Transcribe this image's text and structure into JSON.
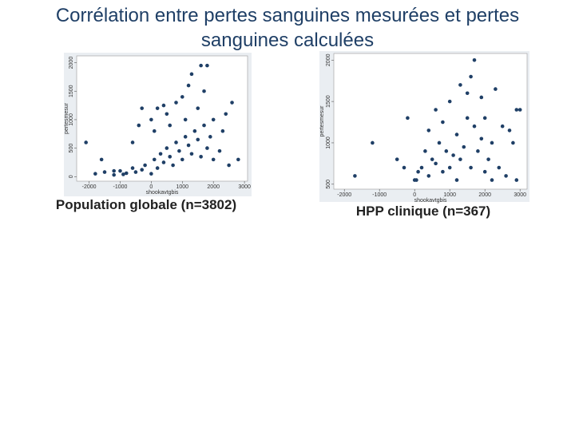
{
  "title": "Corrélation entre pertes sanguines mesurées et pertes sanguines calculées",
  "chart_data": [
    {
      "type": "scatter",
      "title": "Population globale (n=3802)",
      "x_label": "shookavtgbis",
      "y_label": "pertesmesur",
      "color": "#1f3f66",
      "xlim": [
        -2400,
        3100
      ],
      "ylim": [
        -80,
        2120
      ],
      "xticks": [
        -2000,
        -1000,
        0,
        1000,
        2000,
        3000
      ],
      "yticks": [
        0,
        500,
        1000,
        1500,
        2000
      ],
      "x": [
        -1800,
        -1500,
        -1200,
        -1000,
        -800,
        -600,
        -500,
        -300,
        -200,
        0,
        100,
        200,
        300,
        400,
        500,
        600,
        700,
        800,
        900,
        1000,
        1100,
        1200,
        1300,
        1400,
        1500,
        1600,
        1700,
        1800,
        1900,
        2000,
        2200,
        2500,
        2800,
        -1600,
        -2100,
        -600,
        -400,
        0,
        200,
        500,
        800,
        1000,
        1200,
        1300,
        1500,
        1800,
        1700,
        2000,
        2400,
        2600,
        1600,
        -300,
        400,
        100,
        -1200,
        -900,
        600,
        1100,
        2300
      ],
      "y": [
        50,
        80,
        30,
        100,
        60,
        150,
        80,
        120,
        200,
        50,
        300,
        150,
        400,
        250,
        500,
        350,
        200,
        600,
        450,
        300,
        700,
        550,
        400,
        800,
        650,
        350,
        900,
        500,
        700,
        300,
        450,
        200,
        300,
        300,
        600,
        600,
        900,
        1000,
        1200,
        1100,
        1300,
        1400,
        1600,
        1800,
        1200,
        1950,
        1500,
        1000,
        1100,
        1300,
        1950,
        1200,
        1250,
        800,
        100,
        40,
        900,
        1000,
        800
      ]
    },
    {
      "type": "scatter",
      "title": "HPP clinique (n=367)",
      "x_label": "shookavtgbis",
      "y_label": "pertesmesur",
      "color": "#1f3f66",
      "xlim": [
        -2300,
        3200
      ],
      "ylim": [
        440,
        2080
      ],
      "xticks": [
        -2000,
        -1000,
        0,
        1000,
        2000,
        3000
      ],
      "yticks": [
        500,
        1000,
        1500,
        2000
      ],
      "x": [
        -1700,
        -1200,
        -500,
        -300,
        0,
        100,
        200,
        300,
        400,
        500,
        600,
        700,
        800,
        900,
        1000,
        1100,
        1200,
        1300,
        1400,
        1500,
        1600,
        1700,
        1800,
        1900,
        2000,
        2100,
        2200,
        2400,
        2600,
        2800,
        2500,
        2900,
        3000,
        -200,
        600,
        1000,
        1300,
        1600,
        1700,
        2300,
        2000,
        400,
        1500,
        2700,
        1900,
        800,
        50,
        1200,
        2200,
        2900
      ],
      "y": [
        600,
        1000,
        800,
        700,
        550,
        650,
        700,
        900,
        600,
        800,
        750,
        1000,
        650,
        900,
        700,
        850,
        1100,
        800,
        950,
        1300,
        700,
        1200,
        900,
        1050,
        650,
        800,
        1000,
        700,
        600,
        1000,
        1200,
        1400,
        1400,
        1300,
        1400,
        1500,
        1700,
        1800,
        2000,
        1650,
        1300,
        1150,
        1600,
        1150,
        1550,
        1250,
        550,
        550,
        550,
        550
      ]
    }
  ]
}
